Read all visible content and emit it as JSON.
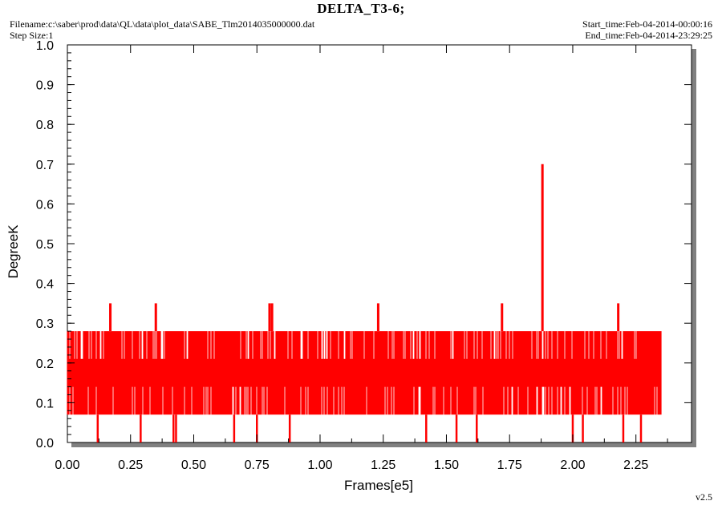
{
  "header": {
    "title": "DELTA_T3-6;",
    "filename": "Filename:c:\\saber\\prod\\data\\QL\\data\\plot_data\\SABE_Tlm2014035000000.dat",
    "step_size": "Step Size:1",
    "start_time": "Start_time:Feb-04-2014-00:00:16",
    "end_time": "End_time:Feb-04-2014-23:29:25"
  },
  "footer": {
    "version": "v2.5"
  },
  "colors": {
    "series": "#ff0000",
    "frame_shadow": "#808080",
    "axis": "#000000"
  },
  "chart_data": {
    "type": "line",
    "title": "DELTA_T3-6;",
    "xlabel": "Frames[e5]",
    "ylabel": "DegreeK",
    "xlim": [
      0,
      2.47
    ],
    "ylim": [
      0,
      1
    ],
    "x_ticks": [
      "0.00",
      "0.25",
      "0.50",
      "0.75",
      "1.00",
      "1.25",
      "1.50",
      "1.75",
      "2.00",
      "2.25"
    ],
    "y_ticks": [
      "0.0",
      "0.1",
      "0.2",
      "0.3",
      "0.4",
      "0.5",
      "0.6",
      "0.7",
      "0.8",
      "0.9",
      "1.0"
    ],
    "grid": false,
    "series": [
      {
        "x_range": [
          0,
          2.35
        ],
        "levels": [
          0.0,
          0.07,
          0.14,
          0.21,
          0.28,
          0.35,
          0.7
        ],
        "typical_band": [
          0.07,
          0.28
        ],
        "spikes_high": [
          {
            "x": 0.17,
            "y": 0.35
          },
          {
            "x": 0.35,
            "y": 0.35
          },
          {
            "x": 0.8,
            "y": 0.35
          },
          {
            "x": 0.81,
            "y": 0.35
          },
          {
            "x": 1.23,
            "y": 0.35
          },
          {
            "x": 1.72,
            "y": 0.35
          },
          {
            "x": 1.88,
            "y": 0.7
          },
          {
            "x": 2.18,
            "y": 0.35
          }
        ],
        "spikes_low": [
          {
            "x": 0.12,
            "y": 0.0
          },
          {
            "x": 0.29,
            "y": 0.0
          },
          {
            "x": 0.42,
            "y": 0.0
          },
          {
            "x": 0.43,
            "y": 0.0
          },
          {
            "x": 0.66,
            "y": 0.0
          },
          {
            "x": 0.75,
            "y": 0.0
          },
          {
            "x": 0.88,
            "y": 0.0
          },
          {
            "x": 1.42,
            "y": 0.0
          },
          {
            "x": 1.54,
            "y": 0.0
          },
          {
            "x": 1.62,
            "y": 0.0
          },
          {
            "x": 2.0,
            "y": 0.0
          },
          {
            "x": 2.04,
            "y": 0.0
          },
          {
            "x": 2.2,
            "y": 0.0
          },
          {
            "x": 2.27,
            "y": 0.0
          }
        ]
      }
    ]
  }
}
